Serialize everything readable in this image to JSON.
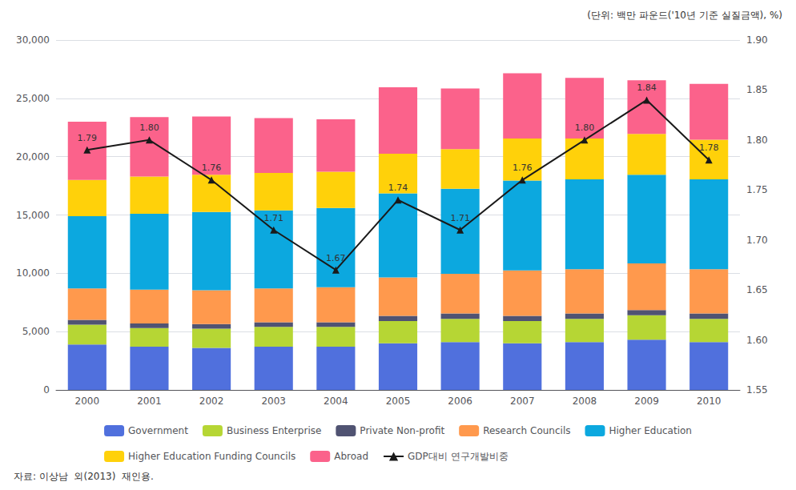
{
  "chart_data": {
    "type": "bar",
    "subtitle": "(단위: 백만 파운드('10년 기준 실질금액), %)",
    "footnote": "자료: 이상남  외(2013)  재인용.",
    "categories": [
      "2000",
      "2001",
      "2002",
      "2003",
      "2004",
      "2005",
      "2006",
      "2007",
      "2008",
      "2009",
      "2010"
    ],
    "stacked": true,
    "grid": true,
    "legend": "bottom",
    "ylim": [
      0,
      30000
    ],
    "yticks": [
      0,
      {
        "value": 5000,
        "label": "5,000"
      },
      {
        "value": 10000,
        "label": "10,000"
      },
      {
        "value": 15000,
        "label": "15,000"
      },
      {
        "value": 20000,
        "label": "20,000"
      },
      {
        "value": 25000,
        "label": "25,000"
      },
      {
        "value": 30000,
        "label": "30,000"
      }
    ],
    "y2lim": [
      1.55,
      1.9
    ],
    "y2ticks": [
      1.55,
      {
        "value": 1.6,
        "label": "1.60"
      },
      1.65,
      {
        "value": 1.7,
        "label": "1.70"
      },
      1.75,
      {
        "value": 1.8,
        "label": "1.80"
      },
      1.85,
      {
        "value": 1.9,
        "label": "1.90"
      }
    ],
    "series": [
      {
        "name": "Government",
        "values": [
          3900,
          3700,
          3600,
          3700,
          3700,
          4000,
          4100,
          4000,
          4100,
          4300,
          4100
        ]
      },
      {
        "name": "Business Enterprise",
        "values": [
          1700,
          1600,
          1650,
          1700,
          1700,
          1900,
          2000,
          1900,
          2000,
          2100,
          2000
        ]
      },
      {
        "name": "Private Non-profit",
        "values": [
          400,
          400,
          400,
          400,
          400,
          450,
          450,
          450,
          450,
          450,
          450
        ]
      },
      {
        "name": "Research Councils",
        "values": [
          2700,
          2900,
          2900,
          2900,
          3000,
          3300,
          3400,
          3900,
          3800,
          4000,
          3800
        ]
      },
      {
        "name": "Higher Education",
        "values": [
          6200,
          6500,
          6700,
          6700,
          6800,
          7200,
          7300,
          7700,
          7700,
          7600,
          7700
        ]
      },
      {
        "name": "Higher Education Funding Councils",
        "values": [
          3100,
          3200,
          3200,
          3200,
          3100,
          3400,
          3400,
          3600,
          3500,
          3500,
          3400
        ]
      },
      {
        "name": "Abroad",
        "values": [
          5000,
          5100,
          5000,
          4700,
          4500,
          5700,
          5200,
          5600,
          5200,
          4600,
          4800
        ]
      },
      {
        "name": "GDP대비 연구개발비중",
        "type": "line",
        "axis": "y2",
        "color": "#1a1a1a",
        "marker": "triangle",
        "line_style": "solid",
        "data_labels": true,
        "values": [
          1.79,
          1.8,
          1.76,
          1.71,
          1.67,
          1.74,
          1.71,
          1.76,
          1.8,
          1.84,
          1.78
        ],
        "value_labels": [
          "1.79",
          "1.80",
          "1.76",
          "1.71",
          "1.67",
          "1.74",
          "1.71",
          "1.76",
          "1.80",
          "1.84",
          "1.78"
        ]
      }
    ]
  }
}
